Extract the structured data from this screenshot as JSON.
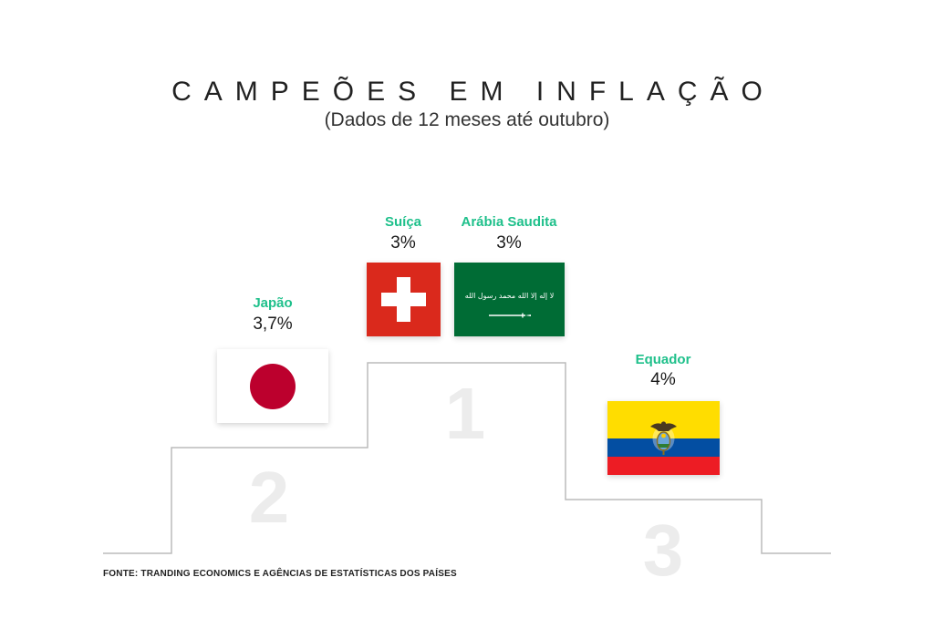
{
  "header": {
    "title": "CAMPEÕES EM INFLAÇÃO",
    "subtitle": "(Dados de 12 meses até outubro)"
  },
  "podium": {
    "ranks": [
      "1",
      "2",
      "3"
    ],
    "first": [
      {
        "country": "Suíça",
        "value": "3%",
        "flag": "switzerland-flag"
      },
      {
        "country": "Arábia Saudita",
        "value": "3%",
        "flag": "saudi-arabia-flag",
        "flag_text": "لا إله إلا الله محمد رسول الله"
      }
    ],
    "second": {
      "country": "Japão",
      "value": "3,7%",
      "flag": "japan-flag"
    },
    "third": {
      "country": "Equador",
      "value": "4%",
      "flag": "ecuador-flag"
    }
  },
  "colors": {
    "accent": "#1fc08b",
    "swiss_red": "#da291c",
    "saudi_green": "#006c35",
    "japan_red": "#bc002d",
    "ecuador_yellow": "#ffdd00",
    "ecuador_blue": "#034ea2",
    "ecuador_red": "#ed1c24",
    "podium_line": "#bbbbbb",
    "rank_number": "#ececec"
  },
  "footer": {
    "source": "FONTE: TRANDING ECONOMICS E AGÊNCIAS DE ESTATÍSTICAS DOS PAÍSES"
  }
}
